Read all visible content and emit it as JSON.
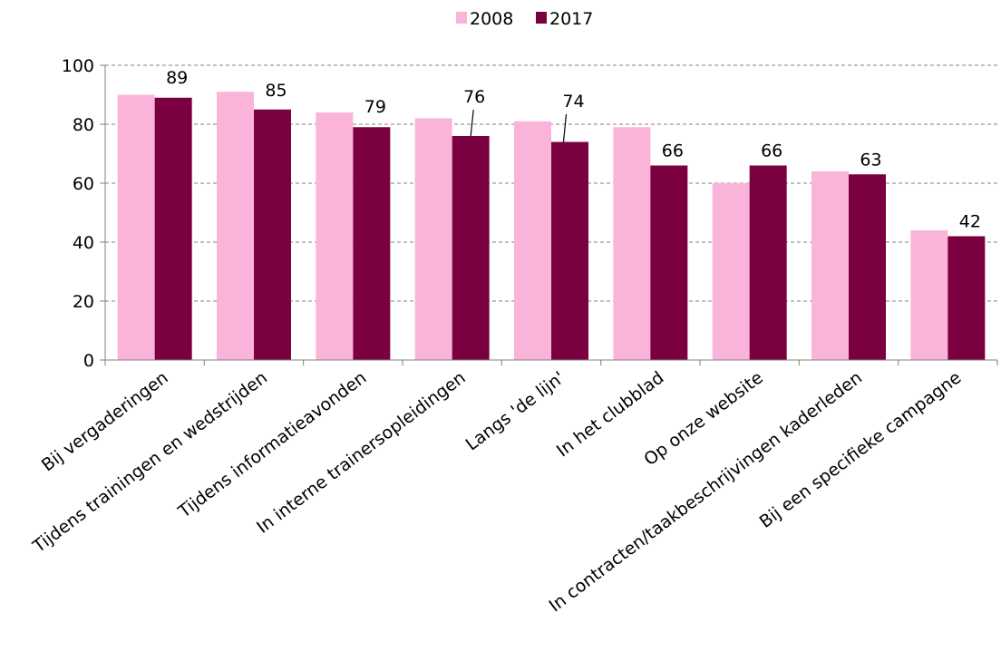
{
  "chart_data": {
    "type": "bar",
    "categories": [
      "Bij vergaderingen",
      "Tijdens trainingen en wedstrijden",
      "Tijdens informatieavonden",
      "In interne trainersopleidingen",
      "Langs 'de lijn'",
      "In het clubblad",
      "Op onze website",
      "In contracten/taakbeschrijvingen kaderleden",
      "Bij een specifieke campagne"
    ],
    "series": [
      {
        "name": "2008",
        "color": "#fbb4d9",
        "values": [
          90,
          91,
          84,
          82,
          81,
          79,
          60,
          64,
          44
        ]
      },
      {
        "name": "2017",
        "color": "#7b003f",
        "values": [
          89,
          85,
          79,
          76,
          74,
          66,
          66,
          63,
          42
        ]
      }
    ],
    "data_labels": [
      "89",
      "85",
      "79",
      "76",
      "74",
      "66",
      "66",
      "63",
      "42"
    ],
    "yticks": [
      "0",
      "20",
      "40",
      "60",
      "80",
      "100"
    ],
    "ylim": [
      0,
      100
    ],
    "grid": true,
    "legend_position": "top-center"
  }
}
